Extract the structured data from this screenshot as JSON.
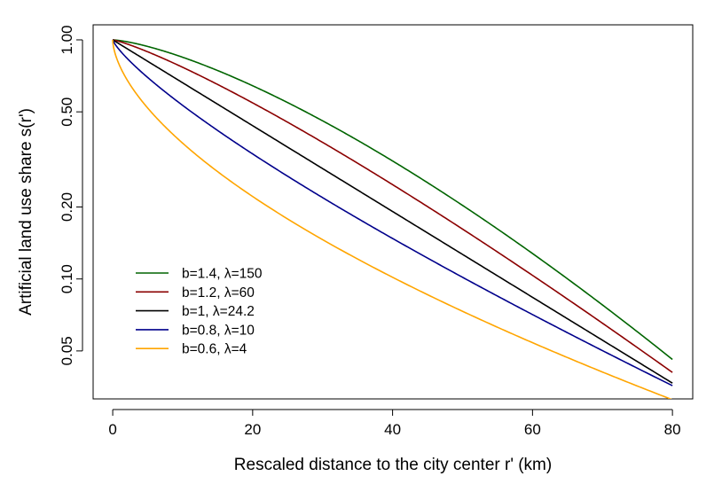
{
  "chart_data": {
    "type": "line",
    "title": "",
    "xlabel": "Rescaled distance to the city center r' (km)",
    "ylabel": "Artificial land use share s(r')",
    "xlim": [
      -2.8,
      82.9
    ],
    "ylim": [
      0.0315,
      1.156
    ],
    "yscale": "log",
    "grid": false,
    "legend_position": "bottom-left",
    "x_ticks": [
      0,
      20,
      40,
      60,
      80
    ],
    "x_tick_labels": [
      "0",
      "20",
      "40",
      "60",
      "80"
    ],
    "y_ticks": [
      1.0,
      0.5,
      0.2,
      0.1,
      0.05
    ],
    "y_tick_labels": [
      "1.00",
      "0.50",
      "0.20",
      "0.10",
      "0.05"
    ],
    "x": [
      0,
      10,
      20,
      30,
      40,
      50,
      60,
      70,
      80
    ],
    "series": [
      {
        "name": "b=1.4, λ=150",
        "b": 1.4,
        "lambda": 150,
        "color": "#006400",
        "values": [
          1.0,
          0.846,
          0.643,
          0.458,
          0.312,
          0.203,
          0.128,
          0.078,
          0.046
        ]
      },
      {
        "name": "b=1.2, λ=60",
        "b": 1.2,
        "lambda": 60,
        "color": "#8B0000",
        "values": [
          1.0,
          0.768,
          0.545,
          0.373,
          0.248,
          0.162,
          0.104,
          0.065,
          0.041
        ]
      },
      {
        "name": "b=1, λ=24.2",
        "b": 1,
        "lambda": 24.2,
        "color": "#000000",
        "values": [
          1.0,
          0.661,
          0.438,
          0.29,
          0.192,
          0.127,
          0.084,
          0.055,
          0.037
        ]
      },
      {
        "name": "b=0.8, λ=10",
        "b": 0.8,
        "lambda": 10,
        "color": "#00008B",
        "values": [
          1.0,
          0.532,
          0.333,
          0.218,
          0.148,
          0.102,
          0.071,
          0.05,
          0.036
        ]
      },
      {
        "name": "b=0.6, λ=4",
        "b": 0.6,
        "lambda": 4,
        "color": "#FFA500",
        "values": [
          1.0,
          0.37,
          0.221,
          0.146,
          0.101,
          0.073,
          0.054,
          0.041,
          0.031
        ]
      }
    ]
  }
}
